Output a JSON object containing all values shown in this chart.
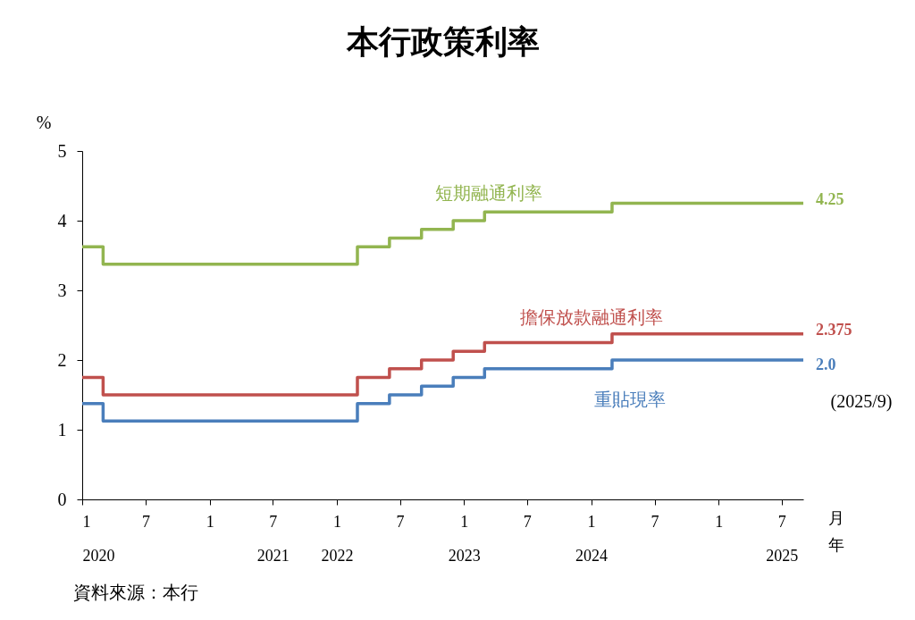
{
  "chart_data": {
    "type": "step",
    "title": "本行政策利率",
    "ylabel": "%",
    "xlabel": "月年",
    "x": [
      "2020-01",
      "2020-03",
      "2022-03",
      "2022-06",
      "2022-09",
      "2022-12",
      "2023-03",
      "2024-03",
      "2025-09"
    ],
    "series": [
      {
        "name": "短期融通利率",
        "color": "#92b550",
        "values": [
          3.625,
          3.375,
          3.625,
          3.75,
          3.875,
          4.0,
          4.125,
          4.25,
          4.25
        ],
        "value_labels": [
          null,
          null,
          null,
          null,
          null,
          null,
          null,
          null,
          "4.25"
        ]
      },
      {
        "name": "擔保放款融通利率",
        "color": "#c0504d",
        "values": [
          1.75,
          1.5,
          1.75,
          1.875,
          2.0,
          2.125,
          2.25,
          2.375,
          2.375
        ],
        "value_labels": [
          null,
          null,
          null,
          null,
          null,
          null,
          null,
          null,
          "2.375"
        ]
      },
      {
        "name": "重貼現率",
        "color": "#4a7ebb",
        "values": [
          1.375,
          1.125,
          1.375,
          1.5,
          1.625,
          1.75,
          1.875,
          2.0,
          2.0
        ],
        "value_labels": [
          null,
          null,
          null,
          null,
          null,
          null,
          null,
          null,
          "2.0"
        ]
      }
    ],
    "xlim": [
      "2020-01",
      "2025-09"
    ],
    "xticks": [
      {
        "value": "2020-01",
        "label": "1\n2020"
      },
      {
        "value": "2020-07",
        "label": "7"
      },
      {
        "value": "2021-01",
        "label": "1"
      },
      {
        "value": "2021-07",
        "label": "7\n2021"
      },
      {
        "value": "2022-01",
        "label": "1\n2022"
      },
      {
        "value": "2022-07",
        "label": "7"
      },
      {
        "value": "2023-01",
        "label": "1\n2023"
      },
      {
        "value": "2023-07",
        "label": "7"
      },
      {
        "value": "2024-01",
        "label": "1\n2024"
      },
      {
        "value": "2024-07",
        "label": "7"
      },
      {
        "value": "2025-01",
        "label": "1"
      },
      {
        "value": "2025-07",
        "label": "7\n2025"
      }
    ],
    "ylim": [
      0,
      5
    ],
    "yticks": [
      0,
      1,
      2,
      3,
      4,
      5
    ],
    "grid": false,
    "marker": "none",
    "line_style": "solid",
    "annotations": [
      "(2025/9)",
      "資料來源：本行"
    ]
  }
}
